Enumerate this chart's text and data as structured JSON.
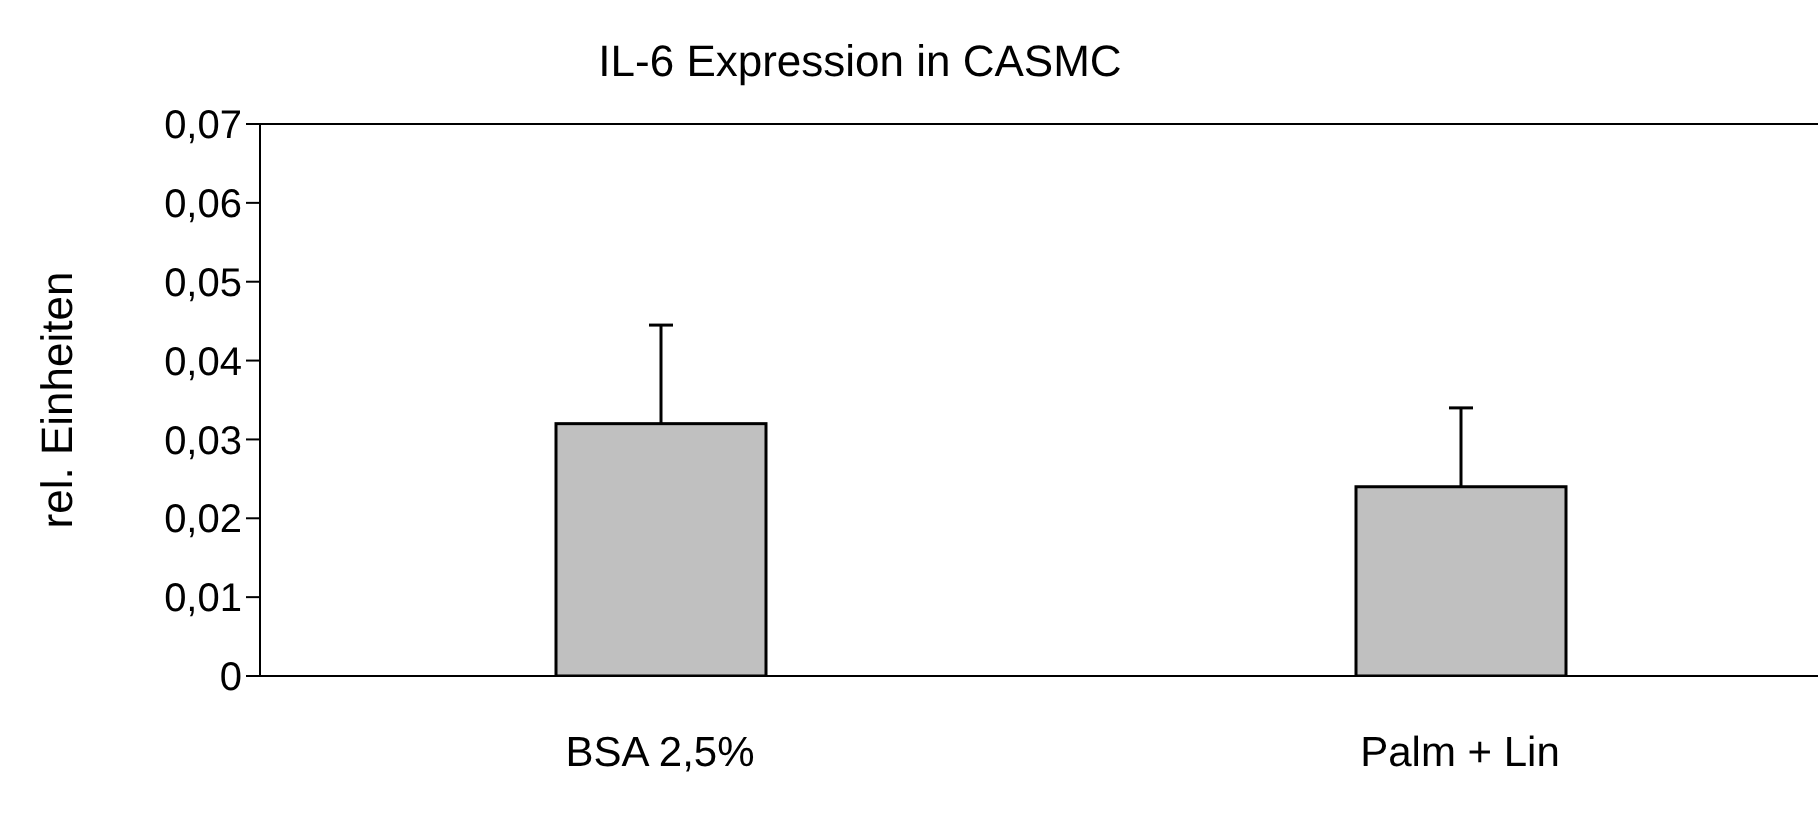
{
  "chart_data": {
    "type": "bar",
    "title": "IL-6 Expression in CASMC",
    "ylabel": "rel. Einheiten",
    "categories": [
      "BSA 2,5%",
      "Palm + Lin"
    ],
    "values": [
      0.032,
      0.024
    ],
    "errors": [
      [
        0.032,
        0.0445
      ],
      [
        0.024,
        0.034
      ]
    ],
    "color": "#c0c0c0",
    "ylim": [
      0,
      0.07
    ],
    "yticks": [
      0,
      {
        "value": 0.01,
        "label": "0,01"
      },
      {
        "value": 0.02,
        "label": "0,02"
      },
      {
        "value": 0.03,
        "label": "0,03"
      },
      {
        "value": 0.04,
        "label": "0,04"
      },
      {
        "value": 0.05,
        "label": "0,05"
      },
      {
        "value": 0.06,
        "label": "0,06"
      },
      {
        "value": 0.07,
        "label": "0,07"
      }
    ],
    "grid": false,
    "legend": false
  }
}
